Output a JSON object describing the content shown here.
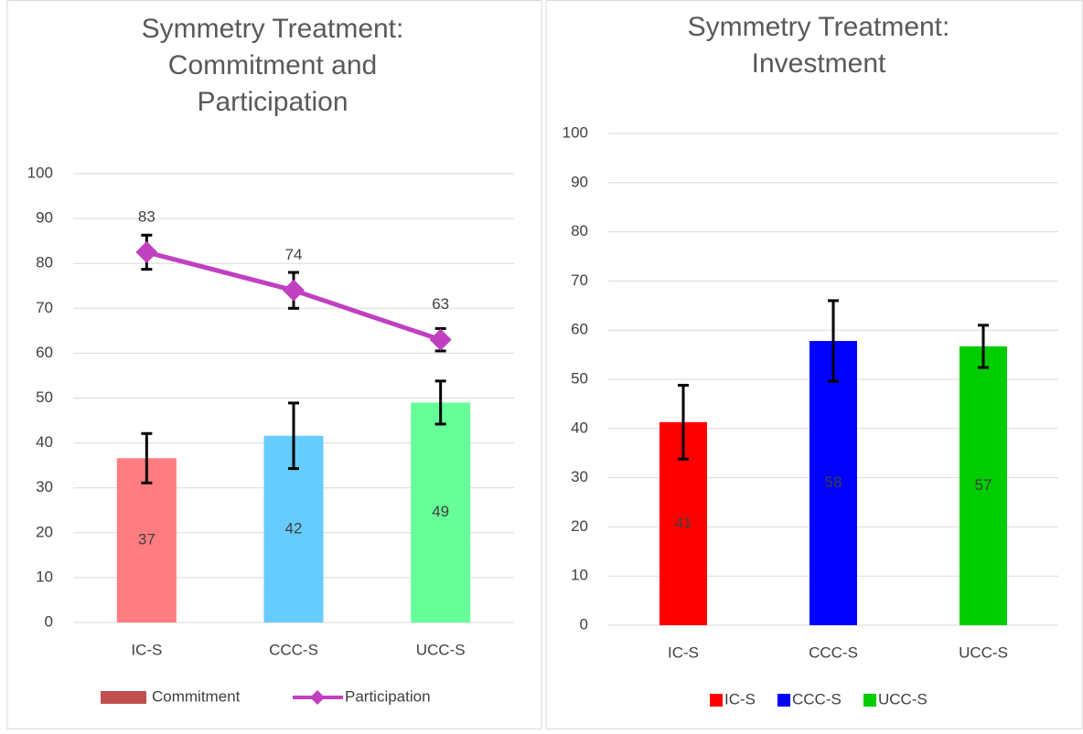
{
  "chart_data": [
    {
      "type": "combo",
      "title": "Symmetry Treatment: Commitment and Participation",
      "categories": [
        "IC-S",
        "CCC-S",
        "UCC-S"
      ],
      "ylim": [
        0,
        100
      ],
      "yticks": [
        0,
        10,
        20,
        30,
        40,
        50,
        60,
        70,
        80,
        90,
        100
      ],
      "grid": true,
      "series": [
        {
          "name": "Commitment",
          "kind": "bar",
          "color": "#c0504d",
          "point_colors": [
            "#ff7c80",
            "#66ccff",
            "#66ff99"
          ],
          "values": [
            36.6,
            41.6,
            49
          ],
          "value_labels": [
            "37",
            "42",
            "49"
          ],
          "errors": [
            5.5,
            7.3,
            4.8
          ]
        },
        {
          "name": "Participation",
          "kind": "line",
          "color": "#c040c0",
          "values": [
            82.5,
            74,
            63
          ],
          "value_labels": [
            "83",
            "74",
            "63"
          ],
          "errors": [
            3.8,
            4,
            2.5
          ]
        }
      ],
      "legend": "bottom"
    },
    {
      "type": "bar",
      "title": "Symmetry Treatment: Investment",
      "categories": [
        "IC-S",
        "CCC-S",
        "UCC-S"
      ],
      "ylim": [
        0,
        100
      ],
      "yticks": [
        0,
        10,
        20,
        30,
        40,
        50,
        60,
        70,
        80,
        90,
        100
      ],
      "grid": true,
      "values": [
        41.3,
        57.8,
        56.7
      ],
      "value_labels": [
        "41",
        "58",
        "57"
      ],
      "errors": [
        7.5,
        8.2,
        4.3
      ],
      "colors": [
        "#ff0000",
        "#0000ff",
        "#00cc00"
      ],
      "legend": "bottom"
    }
  ]
}
